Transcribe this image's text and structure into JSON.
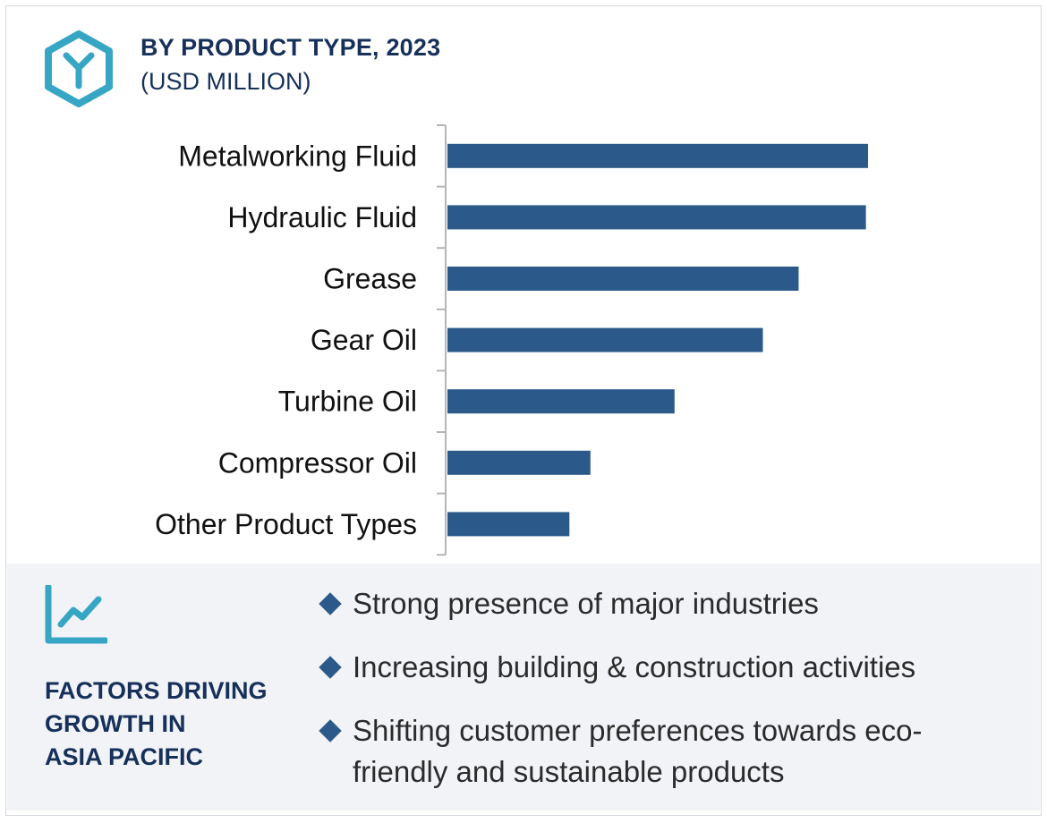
{
  "header": {
    "title": "BY PRODUCT TYPE, 2023",
    "subtitle": "(USD MILLION)",
    "logo_icon": "y-hexagon-logo-icon"
  },
  "colors": {
    "bar": "#2b5a8a",
    "title": "#16305a",
    "accent_teal": "#37a6c4",
    "panel_bg": "#f1f3f7"
  },
  "chart_data": {
    "type": "bar",
    "orientation": "horizontal",
    "categories": [
      "Metalworking Fluid",
      "Hydraulic Fluid",
      "Grease",
      "Gear Oil",
      "Turbine Oil",
      "Compressor Oil",
      "Other Product Types"
    ],
    "values": [
      100,
      99.5,
      83.5,
      75,
      54,
      34,
      29
    ],
    "title": "BY PRODUCT TYPE, 2023",
    "subtitle": "(USD MILLION)",
    "xlabel": "",
    "ylabel": "",
    "xlim": [
      0,
      100
    ],
    "grid": false,
    "legend": "none",
    "value_labels_shown": false
  },
  "factors": {
    "icon": "trend-line-chart-icon",
    "heading_lines": [
      "FACTORS DRIVING",
      "GROWTH IN",
      "ASIA PACIFIC"
    ],
    "bullets": [
      "Strong presence of major industries",
      "Increasing building & construction activities",
      "Shifting customer preferences towards eco-friendly and sustainable products"
    ]
  }
}
